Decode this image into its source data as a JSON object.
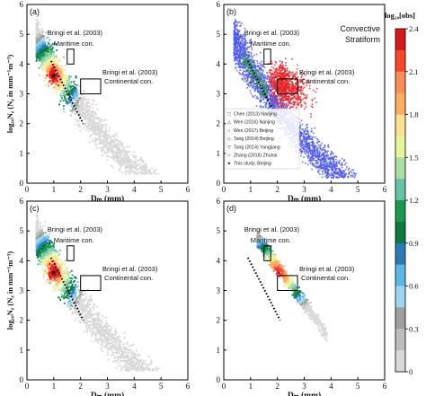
{
  "figure": {
    "colorbar": {
      "title": "log₁₀[obs]",
      "ticks": [
        "2.4",
        "2.1",
        "1.8",
        "1.5",
        "1.2",
        "0.9",
        "0.6",
        "0.3",
        "0"
      ],
      "tick_values": [
        2.4,
        2.1,
        1.8,
        1.5,
        1.2,
        0.9,
        0.6,
        0.3,
        0
      ],
      "colors": [
        "#d7191c",
        "#f8462a",
        "#fc8d59",
        "#fdae61",
        "#fee090",
        "#e6f598",
        "#abdda4",
        "#66c2a5",
        "#1a9850",
        "#0b7a3e",
        "#2c7bb6",
        "#5bb8e6",
        "#9dd4f0",
        "#9e9e9e",
        "#bdbdbd",
        "#d9d9d9"
      ]
    },
    "convective_color": "#e8252a",
    "stratiform_color": "#4f5bf0"
  },
  "chart_data": [
    {
      "type": "scatter",
      "panel": "(a)",
      "xlabel": "Dₘ (mm)",
      "ylabel": "log₁₀Nᵪ (Nᵪ in mm⁻¹m⁻³)",
      "xlim": [
        0,
        6
      ],
      "ylim": [
        0,
        6
      ],
      "xticks": [
        "0",
        "1",
        "2",
        "3",
        "4",
        "5",
        "6"
      ],
      "yticks": [
        "0",
        "1",
        "2",
        "3",
        "4",
        "5",
        "6"
      ],
      "annotations": {
        "maritime": "Bringi et al. (2003)",
        "maritime_sub": "Maritime con.",
        "continental": "Bringi et al. (2003)",
        "continental_sub": "Continental con."
      },
      "maritime_box": {
        "x": [
          1.5,
          1.75
        ],
        "y": [
          4.0,
          4.5
        ]
      },
      "continental_box": {
        "x": [
          2.0,
          2.75
        ],
        "y": [
          3.0,
          3.5
        ]
      },
      "fit_line": {
        "x": [
          0.9,
          2.1
        ],
        "y": [
          4.1,
          2.0
        ]
      },
      "density_center": {
        "x": 1.0,
        "y": 3.6
      }
    },
    {
      "type": "scatter",
      "panel": "(b)",
      "xlabel": "Dₘ (mm)",
      "ylabel": "",
      "xlim": [
        0,
        6
      ],
      "ylim": [
        0,
        6
      ],
      "xticks": [
        "0",
        "1",
        "2",
        "3",
        "4",
        "5",
        "6"
      ],
      "yticks": [
        "0",
        "1",
        "2",
        "3",
        "4",
        "5",
        "6"
      ],
      "series_labels": [
        "Convective",
        "Stratiform"
      ],
      "annotations": {
        "maritime": "Bringi et al. (2003)",
        "maritime_sub": "Maritime con.",
        "continental": "Bringi et al. (2003)",
        "continental_sub": "Continental con."
      },
      "maritime_box": {
        "x": [
          1.5,
          1.75
        ],
        "y": [
          4.0,
          4.5
        ]
      },
      "continental_box": {
        "x": [
          2.0,
          2.75
        ],
        "y": [
          3.0,
          3.5
        ]
      },
      "fit_line": {
        "x": [
          0.9,
          2.1
        ],
        "y": [
          4.1,
          2.0
        ]
      },
      "legend": [
        {
          "label": "Chen (2013) Nanjing",
          "marker": "□"
        },
        {
          "label": "Wen (2016) Nanjing",
          "marker": "△"
        },
        {
          "label": "Wen (2017) Beijing",
          "marker": "○"
        },
        {
          "label": "Tang (2014) Beijing",
          "marker": "◇"
        },
        {
          "label": "Tang (2014) Yangjiang",
          "marker": "▽"
        },
        {
          "label": "Zhang (2018) Zhuhai",
          "marker": "☆"
        },
        {
          "label": "This study, Beijing",
          "marker": "★"
        }
      ],
      "legend_points": [
        {
          "x": 1.2,
          "y": 3.3
        },
        {
          "x": 0.8,
          "y": 3.5
        },
        {
          "x": 1.5,
          "y": 3.0
        },
        {
          "x": 1.1,
          "y": 3.6
        },
        {
          "x": 1.7,
          "y": 3.2
        },
        {
          "x": 1.3,
          "y": 3.9
        },
        {
          "x": 1.0,
          "y": 3.4
        }
      ]
    },
    {
      "type": "scatter",
      "panel": "(c)",
      "xlabel": "Dₘ (mm)",
      "ylabel": "log₁₀Nᵪ (Nᵪ in mm⁻¹m⁻³)",
      "xlim": [
        0,
        6
      ],
      "ylim": [
        0,
        6
      ],
      "xticks": [
        "0",
        "1",
        "2",
        "3",
        "4",
        "5",
        "6"
      ],
      "yticks": [
        "0",
        "1",
        "2",
        "3",
        "4",
        "5",
        "6"
      ],
      "annotations": {
        "maritime": "Bringi et al. (2003)",
        "maritime_sub": "Maritime con.",
        "continental": "Bringi et al. (2003)",
        "continental_sub": "Continental con."
      },
      "maritime_box": {
        "x": [
          1.5,
          1.75
        ],
        "y": [
          4.0,
          4.5
        ]
      },
      "continental_box": {
        "x": [
          2.0,
          2.75
        ],
        "y": [
          3.0,
          3.5
        ]
      },
      "fit_line": {
        "x": [
          0.9,
          2.1
        ],
        "y": [
          4.1,
          2.0
        ]
      },
      "density_center": {
        "x": 1.0,
        "y": 3.6
      }
    },
    {
      "type": "scatter",
      "panel": "(d)",
      "xlabel": "Dₘ (mm)",
      "ylabel": "",
      "xlim": [
        0,
        6
      ],
      "ylim": [
        0,
        6
      ],
      "xticks": [
        "0",
        "1",
        "2",
        "3",
        "4",
        "5",
        "6"
      ],
      "yticks": [
        "0",
        "1",
        "2",
        "3",
        "4",
        "5",
        "6"
      ],
      "annotations": {
        "maritime": "Bringi et al. (2003)",
        "maritime_sub": "Maritime con.",
        "continental": "Bringi et al. (2003)",
        "continental_sub": "Continental con."
      },
      "maritime_box": {
        "x": [
          1.5,
          1.75
        ],
        "y": [
          4.0,
          4.5
        ]
      },
      "continental_box": {
        "x": [
          2.0,
          2.75
        ],
        "y": [
          3.0,
          3.5
        ]
      },
      "fit_line": {
        "x": [
          0.9,
          2.1
        ],
        "y": [
          4.1,
          2.0
        ]
      },
      "density_center": {
        "x": 2.0,
        "y": 3.6
      }
    }
  ]
}
